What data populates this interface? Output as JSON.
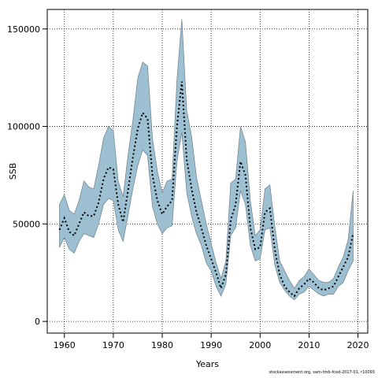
{
  "chart_data": {
    "type": "area",
    "xlabel": "Years",
    "ylabel": "SSB",
    "xlim": [
      1956.5,
      2022
    ],
    "ylim": [
      -6000,
      160000
    ],
    "x_ticks": [
      1960,
      1970,
      1980,
      1990,
      2000,
      2010,
      2020
    ],
    "y_ticks": [
      0,
      50000,
      100000,
      150000
    ],
    "y_tick_labels": [
      "0",
      "50000",
      "100000",
      "150000"
    ],
    "grid": true,
    "colors": {
      "band": "#9cc0d1",
      "band_edge": "#6f7f88",
      "line": "#000000",
      "grid": "#000000"
    },
    "x": [
      1959,
      1960,
      1961,
      1962,
      1963,
      1964,
      1965,
      1966,
      1967,
      1968,
      1969,
      1970,
      1971,
      1972,
      1973,
      1974,
      1975,
      1976,
      1977,
      1978,
      1979,
      1980,
      1981,
      1982,
      1983,
      1984,
      1985,
      1986,
      1987,
      1988,
      1989,
      1990,
      1991,
      1992,
      1993,
      1994,
      1995,
      1996,
      1997,
      1998,
      1999,
      2000,
      2001,
      2002,
      2003,
      2004,
      2005,
      2006,
      2007,
      2008,
      2009,
      2010,
      2011,
      2012,
      2013,
      2014,
      2015,
      2016,
      2017,
      2018,
      2019
    ],
    "series": [
      {
        "role": "estimate",
        "values": [
          47000,
          53000,
          46000,
          44000,
          50000,
          56000,
          54000,
          54000,
          61000,
          73000,
          79000,
          78000,
          60000,
          51000,
          67000,
          84000,
          99000,
          107000,
          104000,
          75000,
          62000,
          55000,
          59000,
          62000,
          100000,
          123000,
          83000,
          68000,
          56000,
          48000,
          39000,
          32000,
          25000,
          17000,
          24000,
          52000,
          60000,
          82000,
          75000,
          48000,
          37000,
          38000,
          56000,
          58000,
          37000,
          24000,
          18000,
          15000,
          13000,
          17000,
          19000,
          22000,
          20000,
          17000,
          16000,
          17000,
          18000,
          23000,
          28000,
          33000,
          45000
        ]
      },
      {
        "role": "upper",
        "values": [
          60000,
          65000,
          57000,
          55000,
          62000,
          72000,
          69000,
          68000,
          80000,
          94000,
          100000,
          98000,
          72000,
          64000,
          85000,
          103000,
          125000,
          133000,
          131000,
          94000,
          77000,
          66000,
          72000,
          73000,
          124000,
          155000,
          108000,
          95000,
          74000,
          62000,
          50000,
          40000,
          30000,
          22000,
          31000,
          71000,
          73000,
          100000,
          92000,
          62000,
          44000,
          47000,
          68000,
          70000,
          49000,
          31000,
          26000,
          21000,
          17000,
          21000,
          23000,
          27000,
          24000,
          21000,
          20000,
          20000,
          22000,
          28000,
          33000,
          42000,
          67000
        ]
      },
      {
        "role": "lower",
        "values": [
          38000,
          43000,
          37000,
          35000,
          41000,
          45000,
          44000,
          43000,
          50000,
          60000,
          63000,
          62000,
          47000,
          41000,
          54000,
          68000,
          80000,
          88000,
          85000,
          59000,
          50000,
          45000,
          48000,
          49000,
          82000,
          97000,
          66000,
          54000,
          45000,
          39000,
          30000,
          26000,
          18000,
          13000,
          19000,
          44000,
          48000,
          67000,
          60000,
          39000,
          31000,
          32000,
          47000,
          48000,
          29000,
          20000,
          16000,
          13000,
          11000,
          14000,
          15000,
          18000,
          16000,
          14000,
          13000,
          14000,
          14000,
          18000,
          20000,
          26000,
          31000
        ]
      }
    ]
  },
  "footnote": "stockassessment.org, sam-tmb-fcod-2017-01, r10093"
}
